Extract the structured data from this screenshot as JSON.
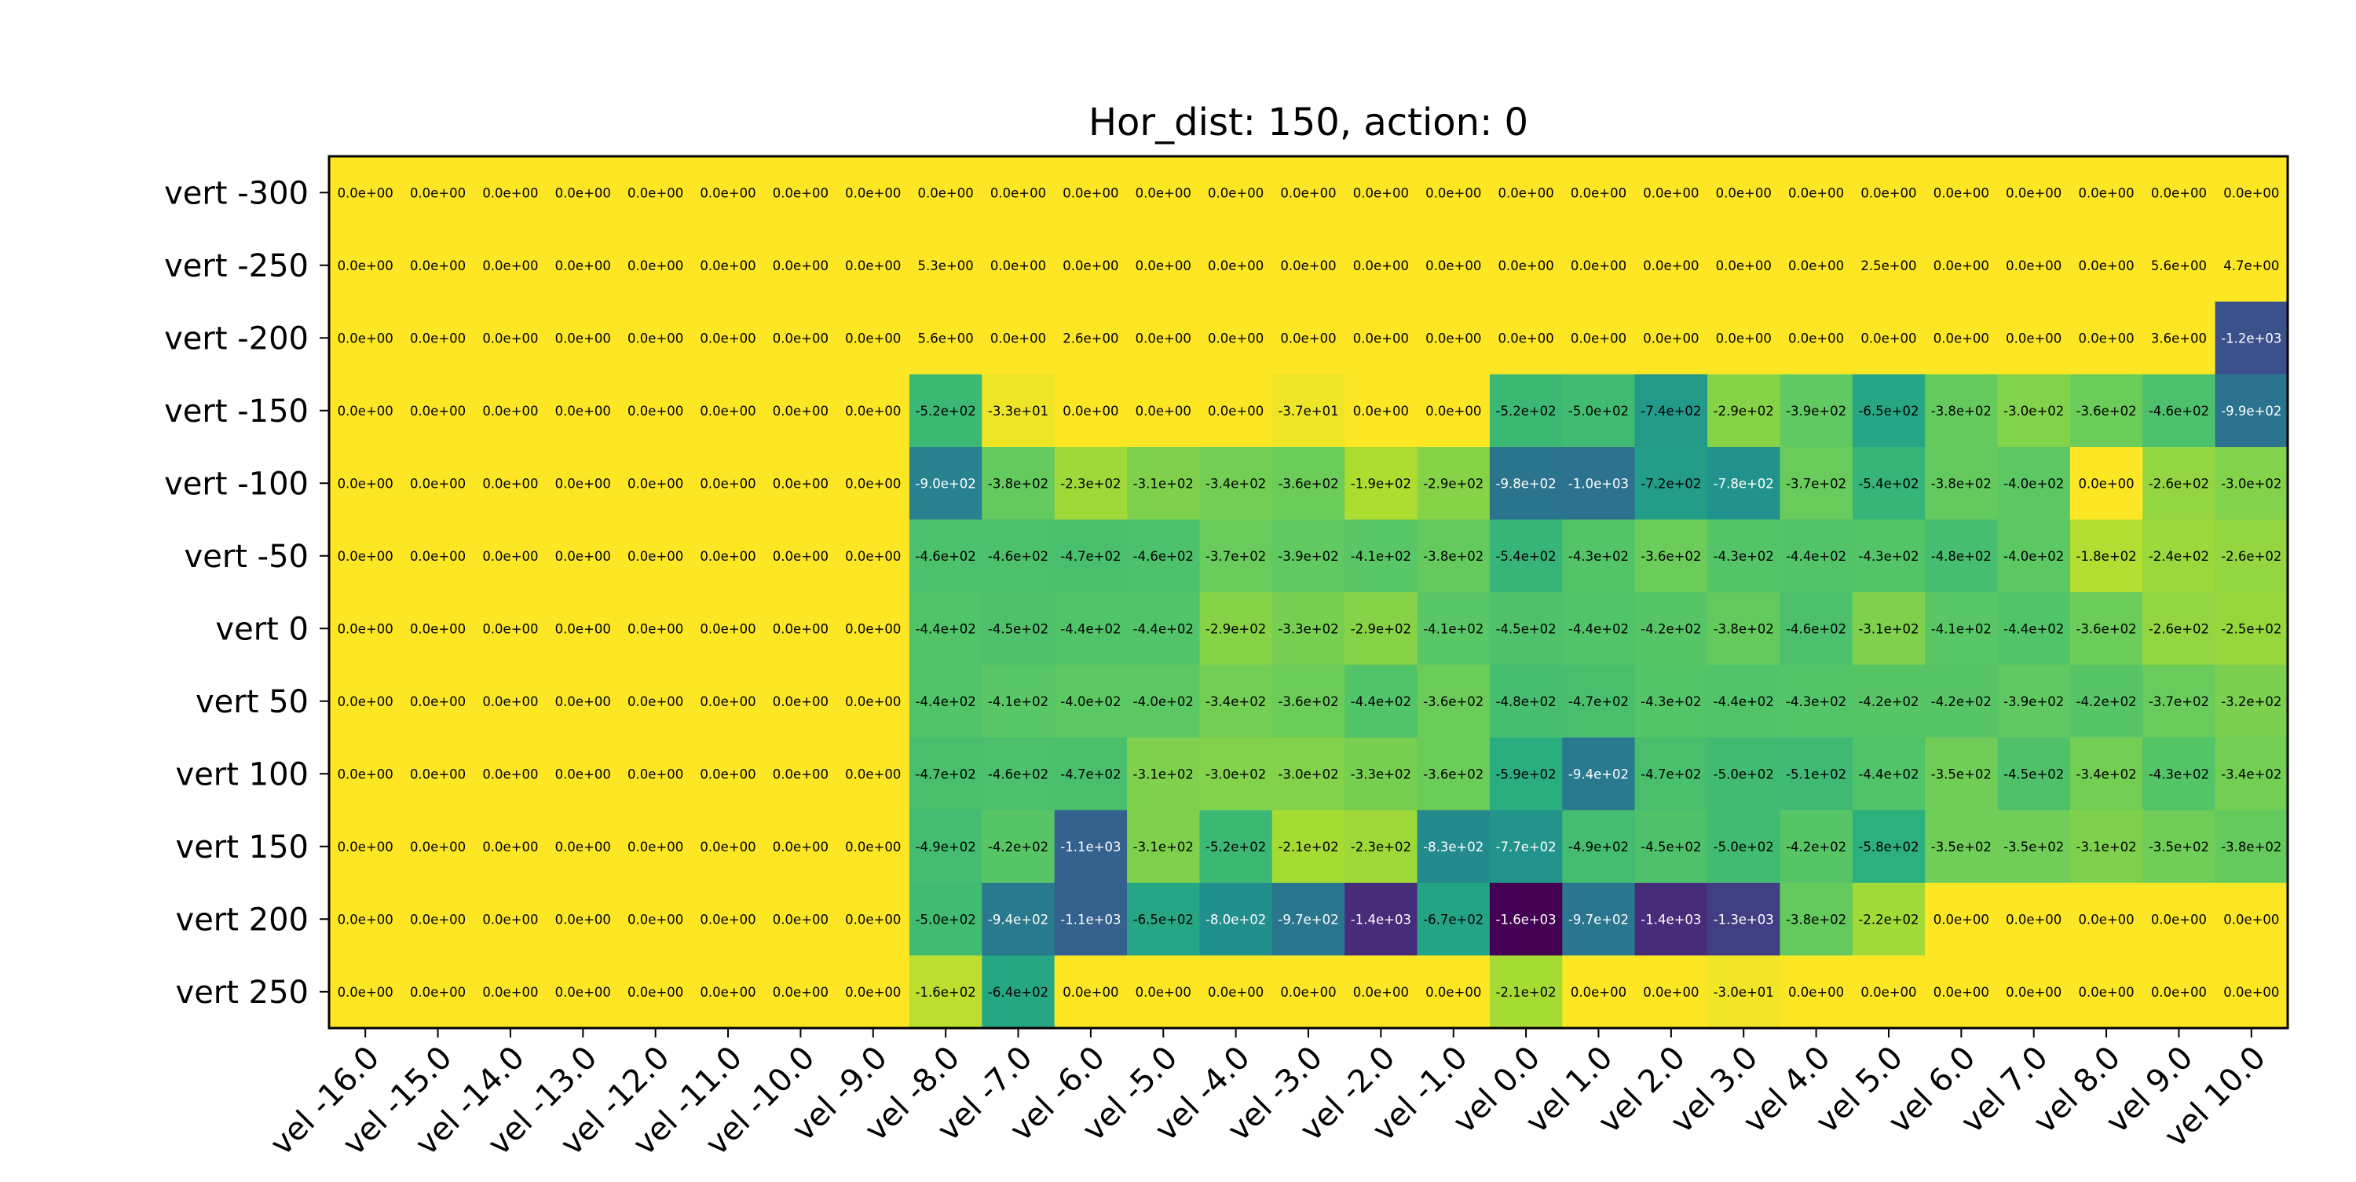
{
  "chart_data": {
    "type": "heatmap",
    "title": "Hor_dist: 150, action: 0",
    "x_labels": [
      "vel -16.0",
      "vel -15.0",
      "vel -14.0",
      "vel -13.0",
      "vel -12.0",
      "vel -11.0",
      "vel -10.0",
      "vel -9.0",
      "vel -8.0",
      "vel -7.0",
      "vel -6.0",
      "vel -5.0",
      "vel -4.0",
      "vel -3.0",
      "vel -2.0",
      "vel -1.0",
      "vel 0.0",
      "vel 1.0",
      "vel 2.0",
      "vel 3.0",
      "vel 4.0",
      "vel 5.0",
      "vel 6.0",
      "vel 7.0",
      "vel 8.0",
      "vel 9.0",
      "vel 10.0"
    ],
    "y_labels": [
      "vert -300",
      "vert -250",
      "vert -200",
      "vert -150",
      "vert -100",
      "vert -50",
      "vert 0",
      "vert 50",
      "vert 100",
      "vert 150",
      "vert 200",
      "vert 250"
    ],
    "cell_labels": [
      [
        "0.0e+00",
        "0.0e+00",
        "0.0e+00",
        "0.0e+00",
        "0.0e+00",
        "0.0e+00",
        "0.0e+00",
        "0.0e+00",
        "0.0e+00",
        "0.0e+00",
        "0.0e+00",
        "0.0e+00",
        "0.0e+00",
        "0.0e+00",
        "0.0e+00",
        "0.0e+00",
        "0.0e+00",
        "0.0e+00",
        "0.0e+00",
        "0.0e+00",
        "0.0e+00",
        "0.0e+00",
        "0.0e+00",
        "0.0e+00",
        "0.0e+00",
        "0.0e+00",
        "0.0e+00"
      ],
      [
        "0.0e+00",
        "0.0e+00",
        "0.0e+00",
        "0.0e+00",
        "0.0e+00",
        "0.0e+00",
        "0.0e+00",
        "0.0e+00",
        "5.3e+00",
        "0.0e+00",
        "0.0e+00",
        "0.0e+00",
        "0.0e+00",
        "0.0e+00",
        "0.0e+00",
        "0.0e+00",
        "0.0e+00",
        "0.0e+00",
        "0.0e+00",
        "0.0e+00",
        "0.0e+00",
        "2.5e+00",
        "0.0e+00",
        "0.0e+00",
        "0.0e+00",
        "5.6e+00",
        "4.7e+00"
      ],
      [
        "0.0e+00",
        "0.0e+00",
        "0.0e+00",
        "0.0e+00",
        "0.0e+00",
        "0.0e+00",
        "0.0e+00",
        "0.0e+00",
        "5.6e+00",
        "0.0e+00",
        "2.6e+00",
        "0.0e+00",
        "0.0e+00",
        "0.0e+00",
        "0.0e+00",
        "0.0e+00",
        "0.0e+00",
        "0.0e+00",
        "0.0e+00",
        "0.0e+00",
        "0.0e+00",
        "0.0e+00",
        "0.0e+00",
        "0.0e+00",
        "0.0e+00",
        "3.6e+00",
        "-1.2e+03"
      ],
      [
        "0.0e+00",
        "0.0e+00",
        "0.0e+00",
        "0.0e+00",
        "0.0e+00",
        "0.0e+00",
        "0.0e+00",
        "0.0e+00",
        "-5.2e+02",
        "-3.3e+01",
        "0.0e+00",
        "0.0e+00",
        "0.0e+00",
        "-3.7e+01",
        "0.0e+00",
        "0.0e+00",
        "-5.2e+02",
        "-5.0e+02",
        "-7.4e+02",
        "-2.9e+02",
        "-3.9e+02",
        "-6.5e+02",
        "-3.8e+02",
        "-3.0e+02",
        "-3.6e+02",
        "-4.6e+02",
        "-9.9e+02"
      ],
      [
        "0.0e+00",
        "0.0e+00",
        "0.0e+00",
        "0.0e+00",
        "0.0e+00",
        "0.0e+00",
        "0.0e+00",
        "0.0e+00",
        "-9.0e+02",
        "-3.8e+02",
        "-2.3e+02",
        "-3.1e+02",
        "-3.4e+02",
        "-3.6e+02",
        "-1.9e+02",
        "-2.9e+02",
        "-9.8e+02",
        "-1.0e+03",
        "-7.2e+02",
        "-7.8e+02",
        "-3.7e+02",
        "-5.4e+02",
        "-3.8e+02",
        "-4.0e+02",
        "0.0e+00",
        "-2.6e+02",
        "-3.0e+02"
      ],
      [
        "0.0e+00",
        "0.0e+00",
        "0.0e+00",
        "0.0e+00",
        "0.0e+00",
        "0.0e+00",
        "0.0e+00",
        "0.0e+00",
        "-4.6e+02",
        "-4.6e+02",
        "-4.7e+02",
        "-4.6e+02",
        "-3.7e+02",
        "-3.9e+02",
        "-4.1e+02",
        "-3.8e+02",
        "-5.4e+02",
        "-4.3e+02",
        "-3.6e+02",
        "-4.3e+02",
        "-4.4e+02",
        "-4.3e+02",
        "-4.8e+02",
        "-4.0e+02",
        "-1.8e+02",
        "-2.4e+02",
        "-2.6e+02"
      ],
      [
        "0.0e+00",
        "0.0e+00",
        "0.0e+00",
        "0.0e+00",
        "0.0e+00",
        "0.0e+00",
        "0.0e+00",
        "0.0e+00",
        "-4.4e+02",
        "-4.5e+02",
        "-4.4e+02",
        "-4.4e+02",
        "-2.9e+02",
        "-3.3e+02",
        "-2.9e+02",
        "-4.1e+02",
        "-4.5e+02",
        "-4.4e+02",
        "-4.2e+02",
        "-3.8e+02",
        "-4.6e+02",
        "-3.1e+02",
        "-4.1e+02",
        "-4.4e+02",
        "-3.6e+02",
        "-2.6e+02",
        "-2.5e+02"
      ],
      [
        "0.0e+00",
        "0.0e+00",
        "0.0e+00",
        "0.0e+00",
        "0.0e+00",
        "0.0e+00",
        "0.0e+00",
        "0.0e+00",
        "-4.4e+02",
        "-4.1e+02",
        "-4.0e+02",
        "-4.0e+02",
        "-3.4e+02",
        "-3.6e+02",
        "-4.4e+02",
        "-3.6e+02",
        "-4.8e+02",
        "-4.7e+02",
        "-4.3e+02",
        "-4.4e+02",
        "-4.3e+02",
        "-4.2e+02",
        "-4.2e+02",
        "-3.9e+02",
        "-4.2e+02",
        "-3.7e+02",
        "-3.2e+02"
      ],
      [
        "0.0e+00",
        "0.0e+00",
        "0.0e+00",
        "0.0e+00",
        "0.0e+00",
        "0.0e+00",
        "0.0e+00",
        "0.0e+00",
        "-4.7e+02",
        "-4.6e+02",
        "-4.7e+02",
        "-3.1e+02",
        "-3.0e+02",
        "-3.0e+02",
        "-3.3e+02",
        "-3.6e+02",
        "-5.9e+02",
        "-9.4e+02",
        "-4.7e+02",
        "-5.0e+02",
        "-5.1e+02",
        "-4.4e+02",
        "-3.5e+02",
        "-4.5e+02",
        "-3.4e+02",
        "-4.3e+02",
        "-3.4e+02"
      ],
      [
        "0.0e+00",
        "0.0e+00",
        "0.0e+00",
        "0.0e+00",
        "0.0e+00",
        "0.0e+00",
        "0.0e+00",
        "0.0e+00",
        "-4.9e+02",
        "-4.2e+02",
        "-1.1e+03",
        "-3.1e+02",
        "-5.2e+02",
        "-2.1e+02",
        "-2.3e+02",
        "-8.3e+02",
        "-7.7e+02",
        "-4.9e+02",
        "-4.5e+02",
        "-5.0e+02",
        "-4.2e+02",
        "-5.8e+02",
        "-3.5e+02",
        "-3.5e+02",
        "-3.1e+02",
        "-3.5e+02",
        "-3.8e+02"
      ],
      [
        "0.0e+00",
        "0.0e+00",
        "0.0e+00",
        "0.0e+00",
        "0.0e+00",
        "0.0e+00",
        "0.0e+00",
        "0.0e+00",
        "-5.0e+02",
        "-9.4e+02",
        "-1.1e+03",
        "-6.5e+02",
        "-8.0e+02",
        "-9.7e+02",
        "-1.4e+03",
        "-6.7e+02",
        "-1.6e+03",
        "-9.7e+02",
        "-1.4e+03",
        "-1.3e+03",
        "-3.8e+02",
        "-2.2e+02",
        "0.0e+00",
        "0.0e+00",
        "0.0e+00",
        "0.0e+00",
        "0.0e+00"
      ],
      [
        "0.0e+00",
        "0.0e+00",
        "0.0e+00",
        "0.0e+00",
        "0.0e+00",
        "0.0e+00",
        "0.0e+00",
        "0.0e+00",
        "-1.6e+02",
        "-6.4e+02",
        "0.0e+00",
        "0.0e+00",
        "0.0e+00",
        "0.0e+00",
        "0.0e+00",
        "0.0e+00",
        "-2.1e+02",
        "0.0e+00",
        "0.0e+00",
        "-3.0e+01",
        "0.0e+00",
        "0.0e+00",
        "0.0e+00",
        "0.0e+00",
        "0.0e+00",
        "0.0e+00",
        "0.0e+00"
      ]
    ],
    "colormap": "viridis",
    "value_range": [
      -1600,
      0
    ],
    "grid": false
  }
}
